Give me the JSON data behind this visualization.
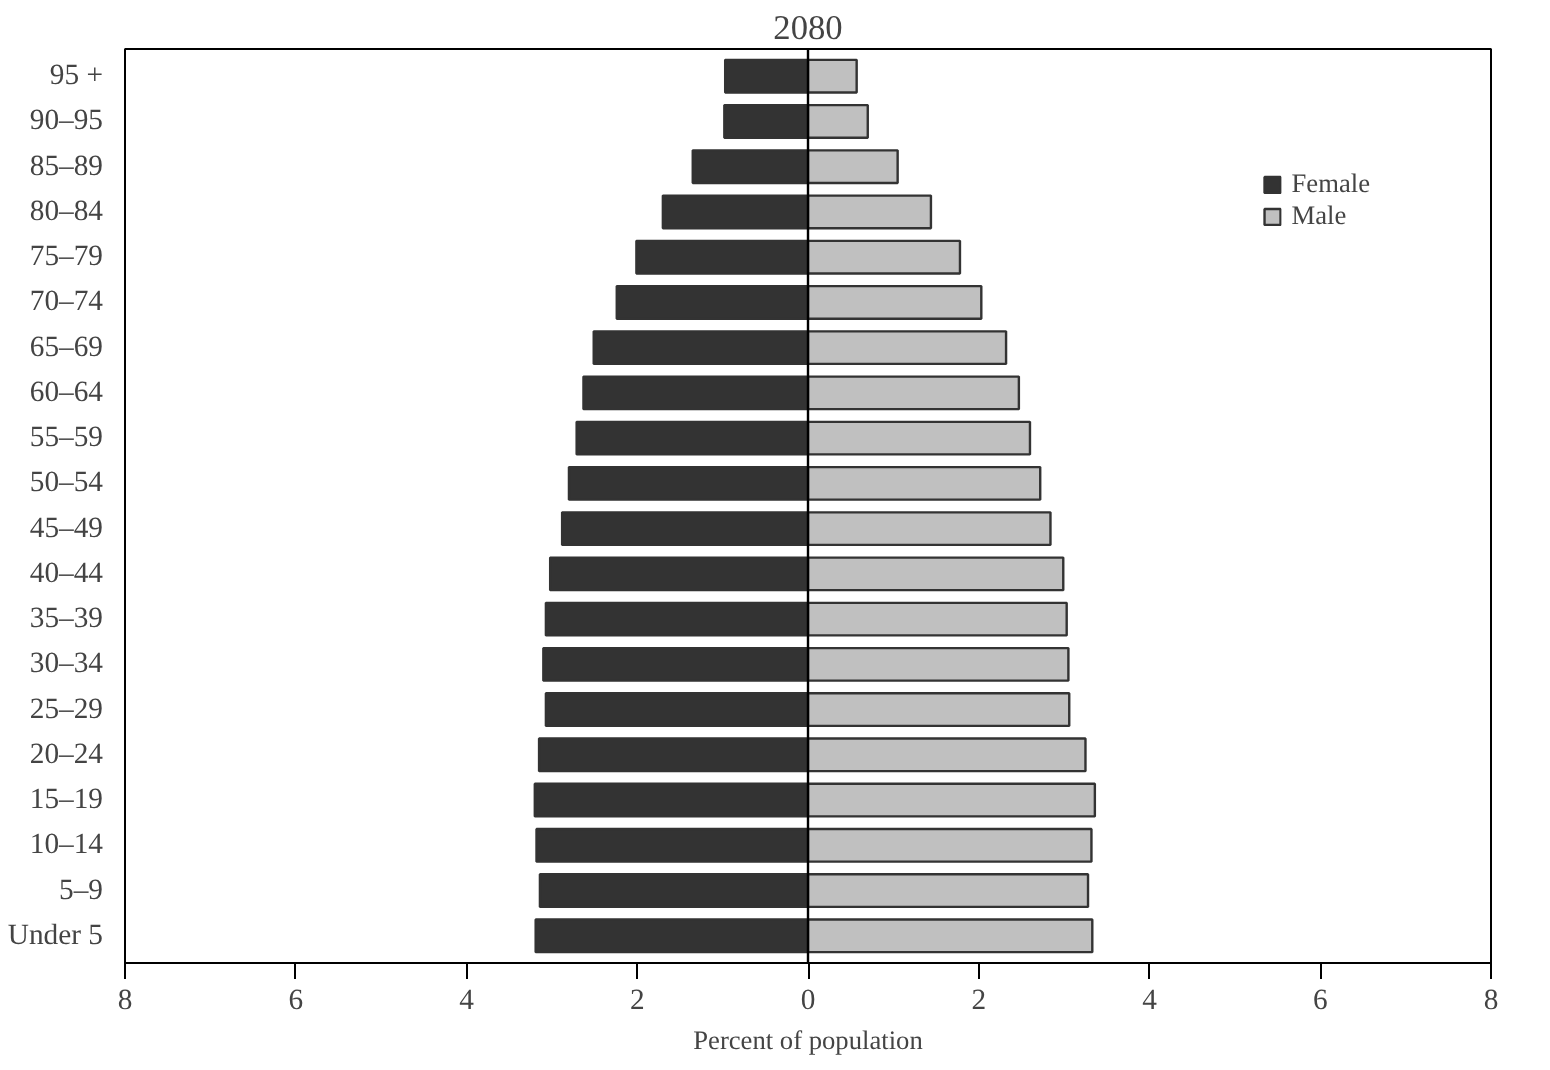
{
  "chart_data": {
    "type": "bar",
    "orientation": "horizontal",
    "title": "2080",
    "xlabel": "Percent of population",
    "categories": [
      "95 +",
      "90–95",
      "85–89",
      "80–84",
      "75–79",
      "70–74",
      "65–69",
      "60–64",
      "55–59",
      "50–54",
      "45–49",
      "40–44",
      "35–39",
      "30–34",
      "25–29",
      "20–24",
      "15–19",
      "10–14",
      "5–9",
      "Under 5"
    ],
    "series": [
      {
        "name": "Female",
        "color": "#333333",
        "values": [
          -0.97,
          -0.98,
          -1.35,
          -1.7,
          -2.01,
          -2.24,
          -2.51,
          -2.63,
          -2.71,
          -2.8,
          -2.88,
          -3.02,
          -3.07,
          -3.1,
          -3.07,
          -3.15,
          -3.2,
          -3.18,
          -3.14,
          -3.19
        ]
      },
      {
        "name": "Male",
        "color": "#c0c0c0",
        "values": [
          0.57,
          0.7,
          1.05,
          1.44,
          1.78,
          2.03,
          2.32,
          2.47,
          2.6,
          2.72,
          2.84,
          2.99,
          3.03,
          3.05,
          3.06,
          3.25,
          3.36,
          3.32,
          3.28,
          3.33
        ]
      }
    ],
    "xlim": [
      -8,
      8
    ],
    "xticks": [
      {
        "value": -8,
        "label": "8"
      },
      {
        "value": -6,
        "label": "6"
      },
      {
        "value": -4,
        "label": "4"
      },
      {
        "value": -2,
        "label": "2"
      },
      0,
      2,
      4,
      6,
      8
    ],
    "stacked": true,
    "ref_lines": [
      {
        "axis": "x",
        "value": 0
      }
    ],
    "grid": false,
    "legend": "top right"
  }
}
